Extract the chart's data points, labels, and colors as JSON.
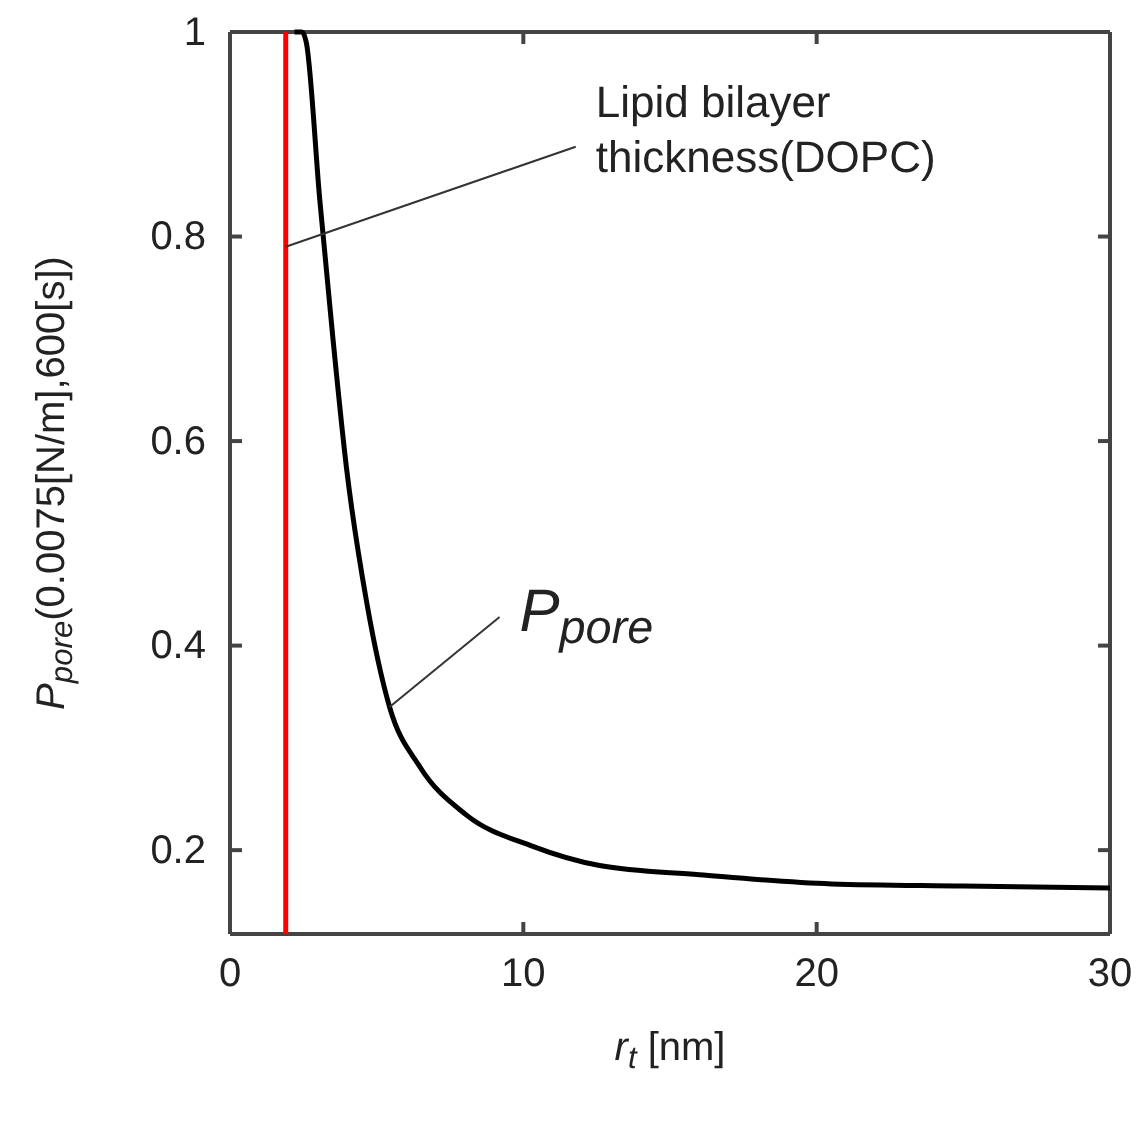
{
  "chart_data": {
    "type": "line",
    "xlabel": "r$_{t}$ [nm]",
    "ylabel": "P$_{pore}$(0.0075[N/m],600[s])",
    "x": [
      2.2,
      2.45,
      2.6,
      3.06,
      3.5,
      3.97,
      4.65,
      5.44,
      6.46,
      8.03,
      10.3,
      12.6,
      16.0,
      20.5,
      25.0,
      30.0
    ],
    "series": [
      {
        "color": "#000000",
        "values": [
          1,
          1,
          0.99,
          0.836,
          0.703,
          0.574,
          0.444,
          0.34,
          0.282,
          0.235,
          0.204,
          0.185,
          0.176,
          0.167,
          0.165,
          0.163
        ]
      }
    ],
    "xlim": [
      0,
      30
    ],
    "xticks": [
      0,
      10,
      20,
      30
    ],
    "ylim": [
      0.118,
      1
    ],
    "yticks": [
      0.2,
      0.4,
      0.6,
      0.8,
      1
    ],
    "ref_lines": [
      {
        "axis": "x",
        "value": 1.9,
        "color": "#ff0000"
      }
    ],
    "annotations": [
      {
        "text": "Lipid bilayer thickness(DOPC)",
        "x": 1.9,
        "y": 0.79
      },
      {
        "text": "P$_{pore}$",
        "x": 5.44,
        "y": 0.34
      }
    ],
    "grid": false,
    "marker": "none",
    "line_style": "solid"
  }
}
